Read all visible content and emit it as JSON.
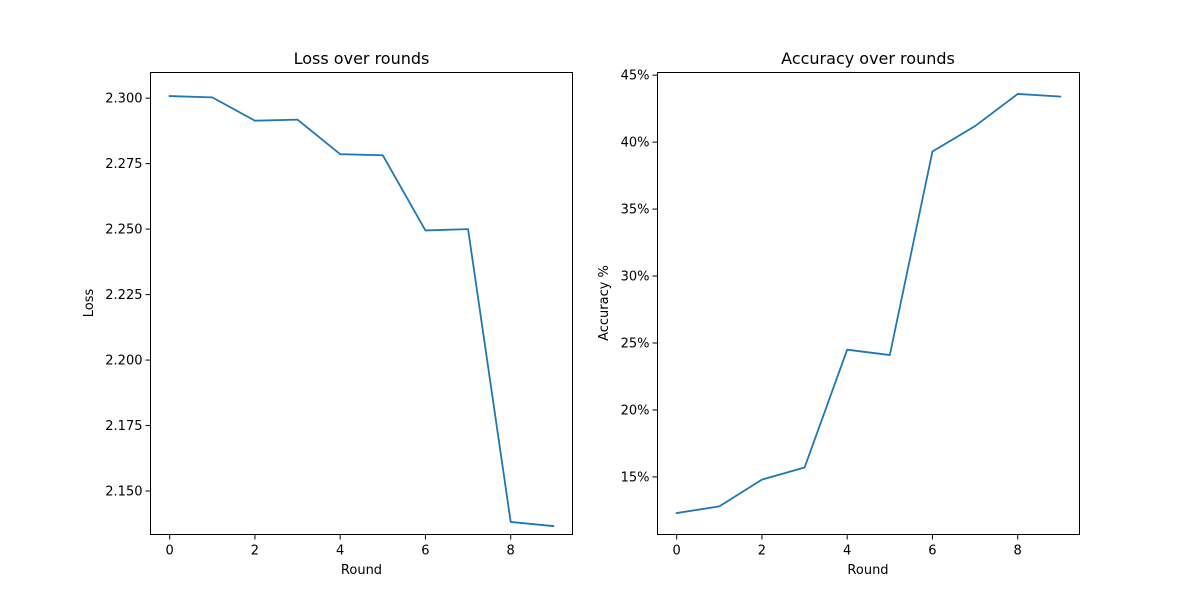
{
  "figure": {
    "background": "#ffffff",
    "line_color": "#1f77b4"
  },
  "chart_data": [
    {
      "type": "line",
      "title": "Loss over rounds",
      "xlabel": "Round",
      "ylabel": "Loss",
      "x": [
        0,
        1,
        2,
        3,
        4,
        5,
        6,
        7,
        8,
        9
      ],
      "series": [
        {
          "values": [
            2.3008,
            2.3003,
            2.2914,
            2.2918,
            2.2786,
            2.2782,
            2.2495,
            2.25,
            2.1382,
            2.1366
          ]
        }
      ],
      "xlim": [
        -0.45,
        9.45
      ],
      "ylim": [
        2.1334,
        2.3098
      ],
      "xticks": [
        0,
        2,
        4,
        6,
        8
      ],
      "xtick_labels": [
        "0",
        "2",
        "4",
        "6",
        "8"
      ],
      "yticks": [
        2.15,
        2.175,
        2.2,
        2.225,
        2.25,
        2.275,
        2.3
      ],
      "ytick_labels": [
        "2.150",
        "2.175",
        "2.200",
        "2.225",
        "2.250",
        "2.275",
        "2.300"
      ],
      "grid": false,
      "legend": false
    },
    {
      "type": "line",
      "title": "Accuracy over rounds",
      "xlabel": "Round",
      "ylabel": "Accuracy %",
      "x": [
        0,
        1,
        2,
        3,
        4,
        5,
        6,
        7,
        8,
        9
      ],
      "series": [
        {
          "values": [
            12.3,
            12.8,
            14.8,
            15.7,
            24.5,
            24.1,
            39.3,
            41.2,
            43.6,
            43.4
          ]
        }
      ],
      "xlim": [
        -0.45,
        9.45
      ],
      "ylim": [
        10.7,
        45.2
      ],
      "xticks": [
        0,
        2,
        4,
        6,
        8
      ],
      "xtick_labels": [
        "0",
        "2",
        "4",
        "6",
        "8"
      ],
      "yticks": [
        15,
        20,
        25,
        30,
        35,
        40,
        45
      ],
      "ytick_labels": [
        "15%",
        "20%",
        "25%",
        "30%",
        "35%",
        "40%",
        "45%"
      ],
      "grid": false,
      "legend": false
    }
  ]
}
